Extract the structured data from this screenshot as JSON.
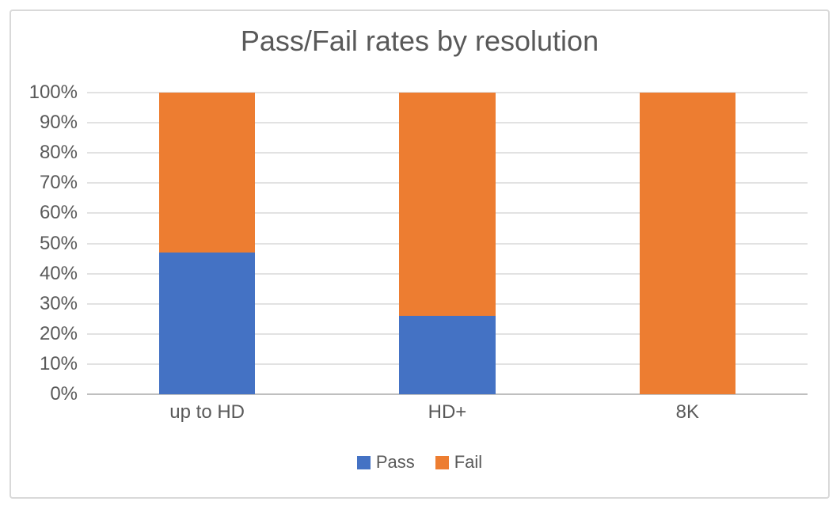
{
  "window": {
    "background_color": "#FFFFFF",
    "frame_border_color": "#D9D9D9"
  },
  "chart_data": {
    "type": "bar",
    "variant": "stacked-100-percent",
    "title": "Pass/Fail rates by resolution",
    "categories": [
      "up to HD",
      "HD+",
      "8K"
    ],
    "series": [
      {
        "name": "Pass",
        "color": "#4472C4",
        "values": [
          47,
          26,
          0
        ]
      },
      {
        "name": "Fail",
        "color": "#ED7D31",
        "values": [
          53,
          74,
          100
        ]
      }
    ],
    "y_ticks_top_to_bottom": [
      "100%",
      "90%",
      "80%",
      "70%",
      "60%",
      "50%",
      "40%",
      "30%",
      "20%",
      "10%",
      "0%"
    ],
    "ylim": [
      0,
      100
    ],
    "y_unit": "%",
    "xlabel": "",
    "ylabel": "",
    "grid": true,
    "gridline_color": "#E2E2E2",
    "axis_line_color": "#BFBFBF",
    "text_color": "#595959",
    "legend_position": "bottom"
  }
}
